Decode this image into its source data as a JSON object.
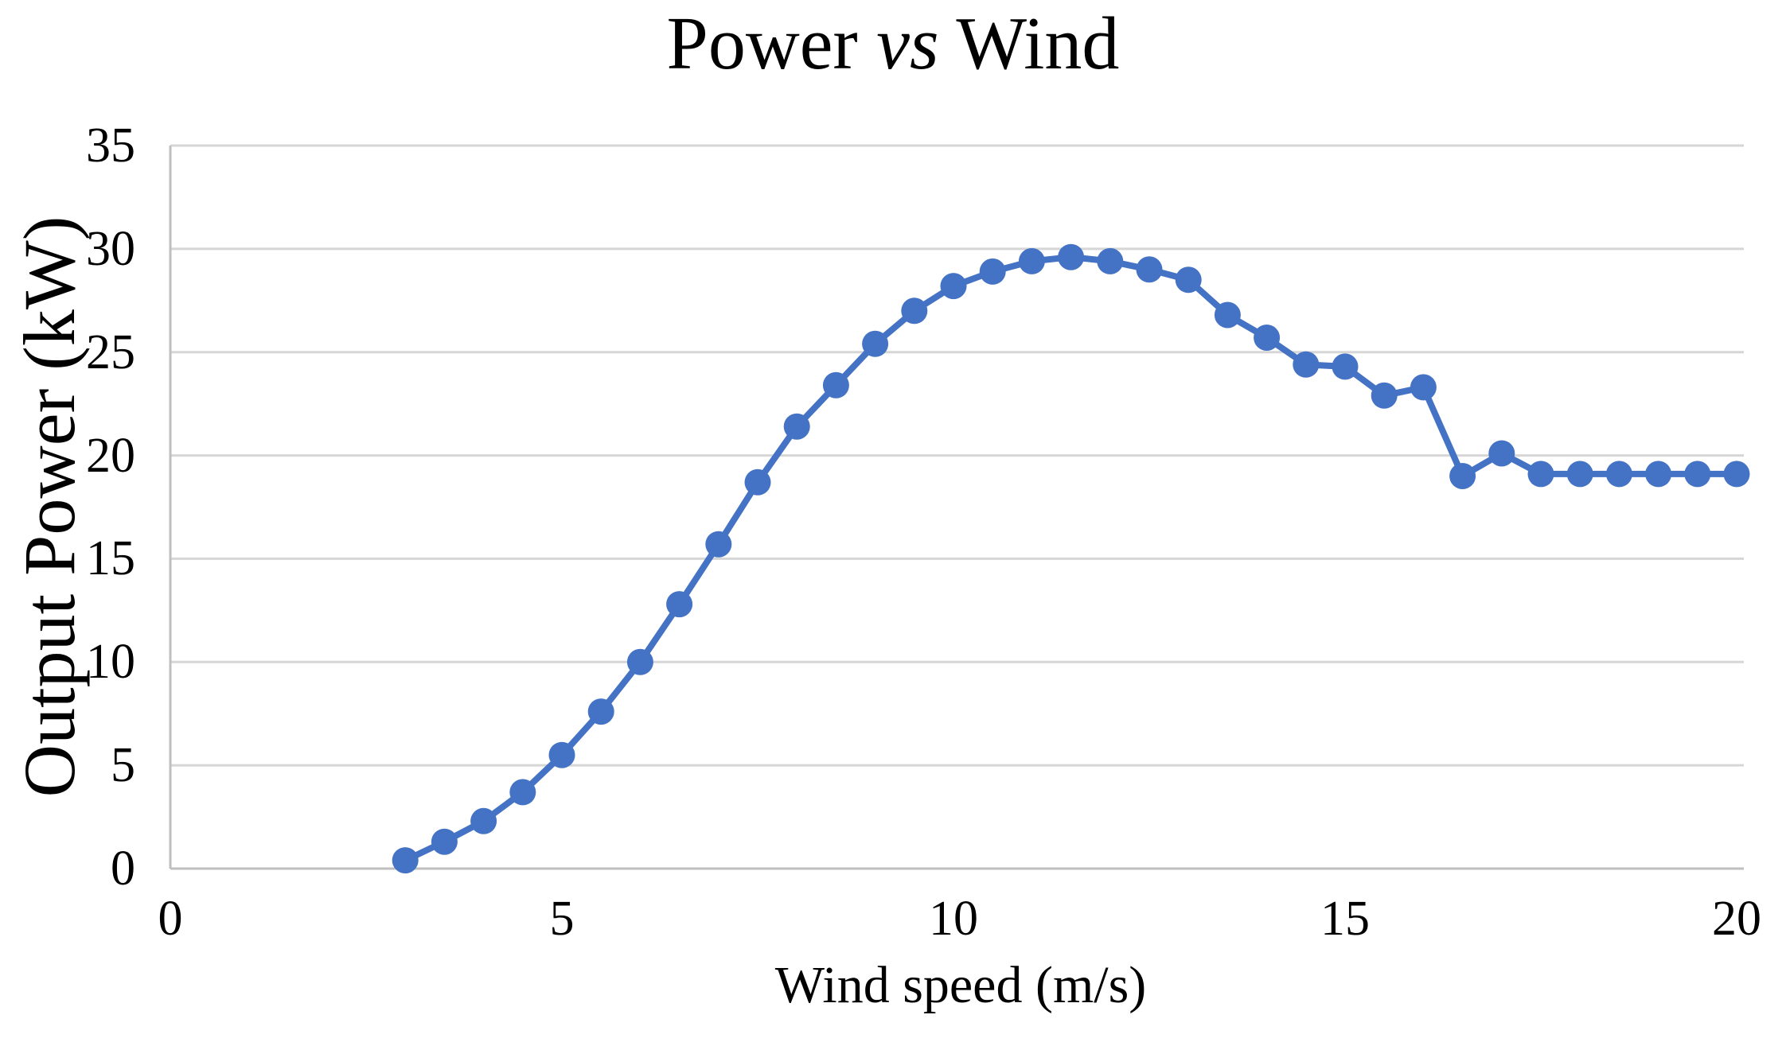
{
  "chart_data": {
    "type": "line",
    "title": "Power vs Wind",
    "title_parts": {
      "pre": "Power ",
      "italic": "vs",
      "post": " Wind"
    },
    "xlabel": "Wind speed (m/s)",
    "ylabel": "Output Power (kW)",
    "xlim": [
      0,
      20
    ],
    "ylim": [
      0,
      35
    ],
    "x_ticks": [
      0,
      5,
      10,
      15,
      20
    ],
    "y_ticks": [
      0,
      5,
      10,
      15,
      20,
      25,
      30,
      35
    ],
    "grid": "horizontal",
    "legend": "none",
    "series": [
      {
        "marker": "circle",
        "color": "#4472C4",
        "x": [
          3,
          3.5,
          4,
          4.5,
          5,
          5.5,
          6,
          6.5,
          7,
          7.5,
          8,
          8.5,
          9,
          9.5,
          10,
          10.5,
          11,
          11.5,
          12,
          12.5,
          13,
          13.5,
          14,
          14.5,
          15,
          15.5,
          16,
          16.5,
          17,
          17.5,
          18,
          18.5,
          19,
          19.5,
          20
        ],
        "y": [
          0.4,
          1.3,
          2.3,
          3.7,
          5.5,
          7.6,
          10.0,
          12.8,
          15.7,
          18.7,
          21.4,
          23.4,
          25.4,
          27.0,
          28.2,
          28.9,
          29.4,
          29.6,
          29.4,
          29.0,
          28.5,
          26.8,
          25.7,
          24.4,
          24.3,
          22.9,
          23.3,
          19.0,
          20.1,
          19.1,
          19.1,
          19.1,
          19.1,
          19.1,
          19.1
        ]
      }
    ]
  },
  "colors": {
    "series": "#4472C4",
    "gridline": "#D6D6D6",
    "axis": "#BFBFBF",
    "text": "#000000",
    "background": "#FFFFFF"
  }
}
